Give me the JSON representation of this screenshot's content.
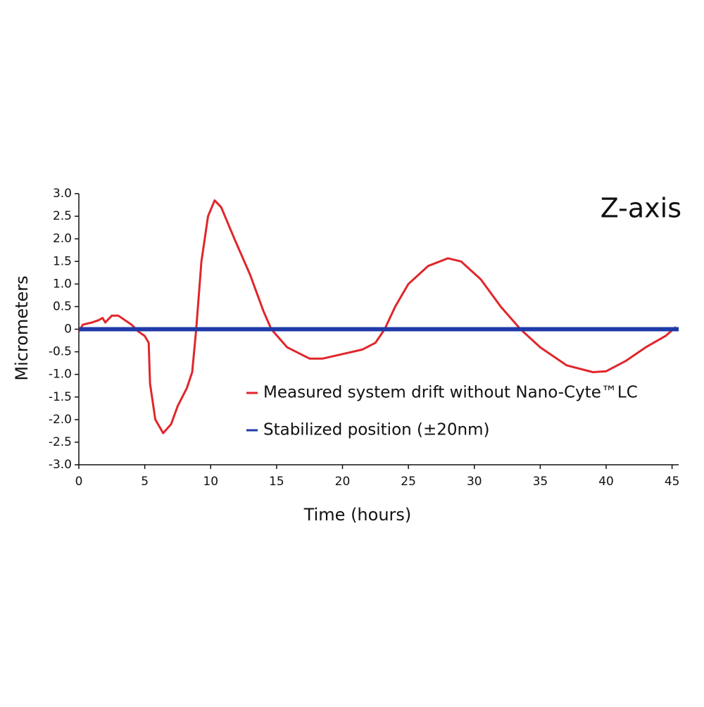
{
  "chart_data": {
    "type": "line",
    "title": "Z-axis",
    "x_label": "Time (hours)",
    "y_label": "Micrometers",
    "xlim": [
      0,
      45.5
    ],
    "ylim": [
      -3,
      3
    ],
    "xticks": [
      0,
      5,
      10,
      15,
      20,
      25,
      30,
      35,
      40,
      45
    ],
    "yticks": [
      {
        "value": 3,
        "label": "3.0"
      },
      2.5,
      {
        "value": 2,
        "label": "2.0"
      },
      1.5,
      {
        "value": 1,
        "label": "1.0"
      },
      0.5,
      0,
      -0.5,
      {
        "value": -1,
        "label": "-1.0"
      },
      -1.5,
      {
        "value": -2,
        "label": "-2.0"
      },
      -2.5,
      {
        "value": -3,
        "label": "-3.0"
      }
    ],
    "legend": "lower center",
    "series": [
      {
        "name": "Measured system drift without Nano-Cyte™LC",
        "color": "#e0262b",
        "x": [
          0,
          0.3,
          1,
          1.5,
          1.8,
          2,
          2.5,
          3,
          3.5,
          4,
          4.5,
          5,
          5.3,
          5.4,
          5.8,
          6.4,
          7,
          7.5,
          8.2,
          8.6,
          8.9,
          9.3,
          9.8,
          10.3,
          10.8,
          11.8,
          13,
          14,
          14.6,
          15.8,
          17.5,
          18.5,
          20,
          21.5,
          22.5,
          23.2,
          24,
          25,
          26.5,
          28,
          29,
          30.5,
          32,
          33.5,
          35,
          37,
          39,
          40,
          41.5,
          43,
          44.5,
          45.3
        ],
        "values": [
          -0.05,
          0.1,
          0.15,
          0.2,
          0.25,
          0.15,
          0.3,
          0.3,
          0.2,
          0.1,
          -0.05,
          -0.15,
          -0.3,
          -1.2,
          -2.0,
          -2.3,
          -2.1,
          -1.7,
          -1.3,
          -0.95,
          0,
          1.5,
          2.5,
          2.85,
          2.7,
          2.0,
          1.2,
          0.4,
          0,
          -0.4,
          -0.65,
          -0.65,
          -0.55,
          -0.45,
          -0.3,
          0,
          0.5,
          1.0,
          1.4,
          1.57,
          1.5,
          1.1,
          0.5,
          0,
          -0.4,
          -0.8,
          -0.95,
          -0.93,
          -0.7,
          -0.4,
          -0.15,
          0.05
        ]
      },
      {
        "name": "Stabilized position (±20nm)",
        "color": "#1f3aa8",
        "x": [
          0,
          45.5
        ],
        "values": [
          0,
          0
        ]
      }
    ]
  }
}
